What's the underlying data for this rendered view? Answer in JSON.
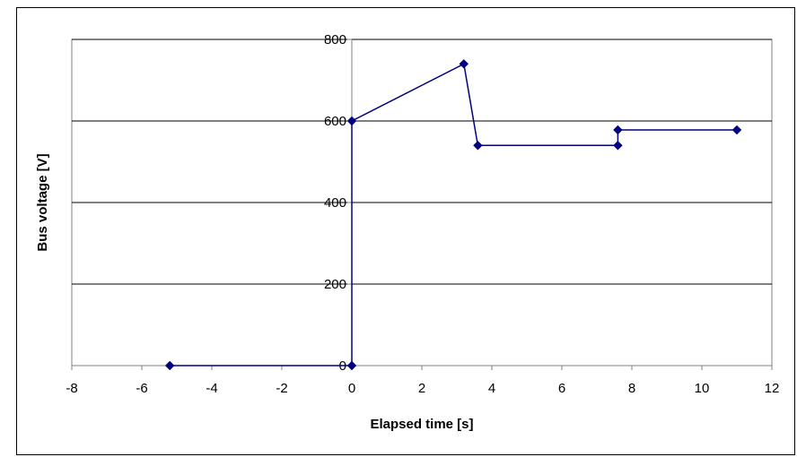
{
  "chart_data": {
    "type": "scatter",
    "xlabel": "Elapsed time [s]",
    "ylabel": "Bus voltage [V]",
    "xlim": [
      -8,
      12
    ],
    "ylim": [
      0,
      800
    ],
    "x_ticks": [
      "-8",
      "-6",
      "-4",
      "-2",
      "0",
      "2",
      "4",
      "6",
      "8",
      "10",
      "12"
    ],
    "y_ticks": [
      "0",
      "200",
      "400",
      "600",
      "800"
    ],
    "grid": "horizontal",
    "legend": "none",
    "series": [
      {
        "color": "#000080",
        "marker": "diamond",
        "line": true,
        "points": [
          {
            "x": -5.2,
            "y": 0
          },
          {
            "x": 0,
            "y": 0
          },
          {
            "x": 0,
            "y": 600
          },
          {
            "x": 3.2,
            "y": 740
          },
          {
            "x": 3.6,
            "y": 540
          },
          {
            "x": 7.6,
            "y": 540
          },
          {
            "x": 7.6,
            "y": 578
          },
          {
            "x": 11.0,
            "y": 578
          }
        ]
      }
    ]
  }
}
